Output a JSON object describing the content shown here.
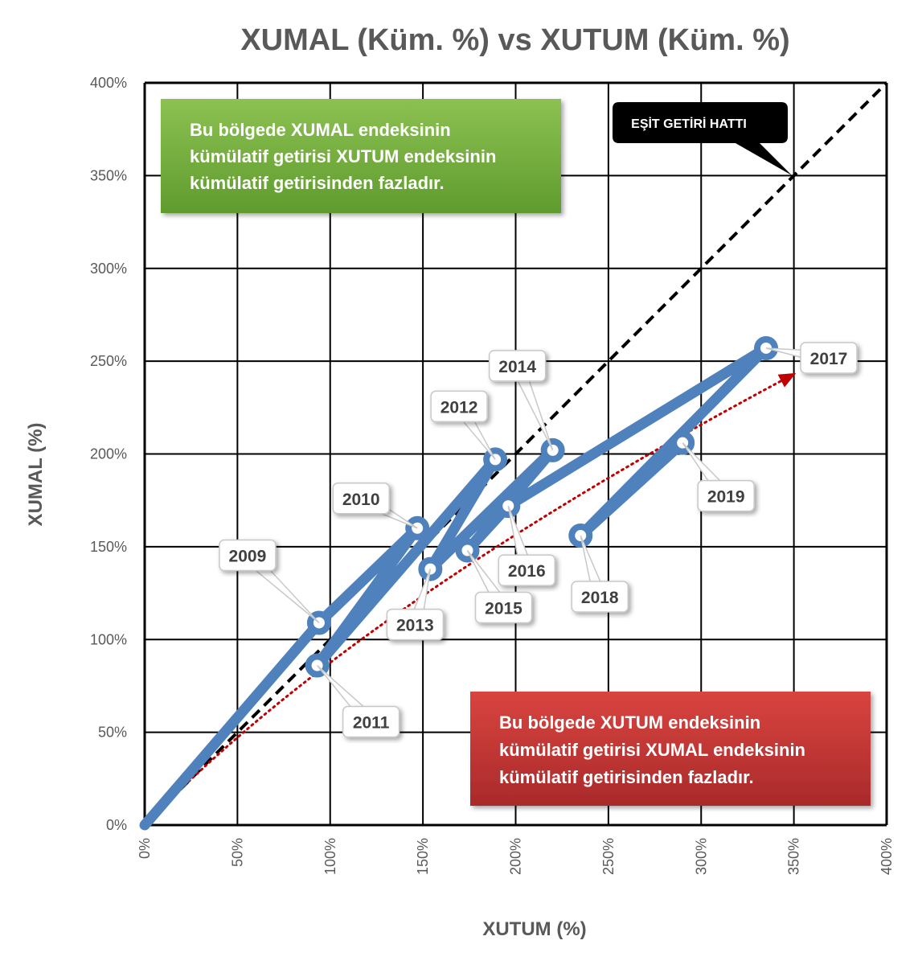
{
  "chart_data": {
    "type": "line",
    "title": "XUMAL (Küm. %) vs XUTUM (Küm. %)",
    "xlabel": "XUTUM (%)",
    "ylabel": "XUMAL (%)",
    "xlim": [
      0,
      400
    ],
    "ylim": [
      0,
      400
    ],
    "x_ticks": [
      "0%",
      "50%",
      "100%",
      "150%",
      "200%",
      "250%",
      "300%",
      "350%",
      "400%"
    ],
    "y_ticks": [
      "0%",
      "50%",
      "100%",
      "150%",
      "200%",
      "250%",
      "300%",
      "350%",
      "400%"
    ],
    "grid": true,
    "series": [
      {
        "color": "#4f81bd",
        "points": [
          {
            "label": "",
            "x": 0,
            "y": 0
          },
          {
            "label": "2009",
            "x": 94,
            "y": 109
          },
          {
            "label": "2010",
            "x": 147,
            "y": 160
          },
          {
            "label": "2011",
            "x": 93,
            "y": 86
          },
          {
            "label": "2012",
            "x": 189,
            "y": 197
          },
          {
            "label": "2013",
            "x": 154,
            "y": 138
          },
          {
            "label": "2014",
            "x": 220,
            "y": 202
          },
          {
            "label": "2015",
            "x": 174,
            "y": 148
          },
          {
            "label": "2016",
            "x": 196,
            "y": 172
          },
          {
            "label": "2017",
            "x": 335,
            "y": 257
          },
          {
            "label": "2018",
            "x": 235,
            "y": 156
          },
          {
            "label": "2019",
            "x": 290,
            "y": 206
          }
        ]
      }
    ],
    "trendline": {
      "style": "dotted",
      "color": "#c00000",
      "x": [
        0,
        350
      ],
      "y": [
        0,
        243
      ]
    },
    "equal_line": {
      "style": "dashed",
      "color": "#000000",
      "x": [
        0,
        400
      ],
      "y": [
        0,
        400
      ]
    },
    "annotations": {
      "equal_line_label": "EŞİT GETİRİ HATTI",
      "upper_region_text": [
        "Bu bölgede XUMAL endeksinin",
        "kümülatif getirisi XUTUM endeksinin",
        "kümülatif getirisinden fazladır."
      ],
      "lower_region_text": [
        "Bu bölgede XUTUM endeksinin",
        "kümülatif getirisi XUMAL endeksinin",
        "kümülatif getirisinden fazladır."
      ]
    },
    "colors": {
      "series": "#4f81bd",
      "trend": "#c00000",
      "green_box": "#77b140",
      "red_box": "#c8373a"
    }
  }
}
